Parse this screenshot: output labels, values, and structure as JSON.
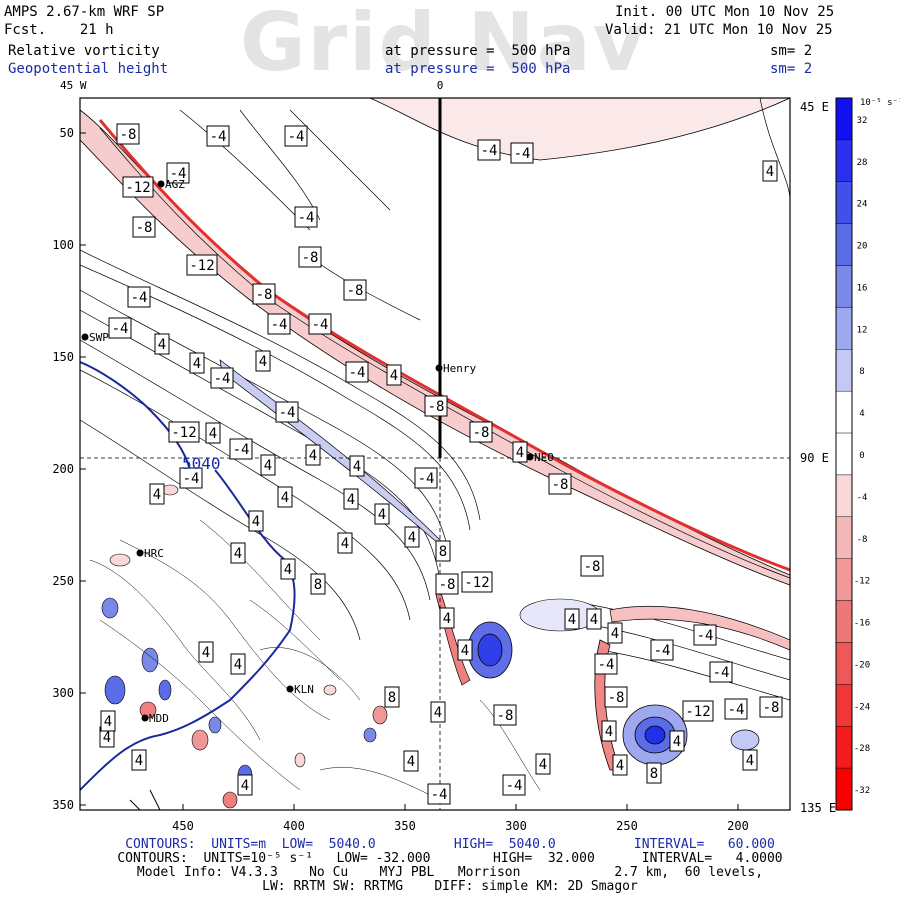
{
  "header": {
    "watermark": "Grid Nav",
    "model_title": "AMPS 2.67-km WRF SP",
    "fcst_label": "Fcst.    21 h",
    "init": "Init. 00 UTC Mon 10 Nov 25",
    "valid": "Valid: 21 UTC Mon 10 Nov 25",
    "field1_name": "Relative vorticity",
    "field1_level": "at pressure =  500 hPa",
    "field1_sm": "sm= 2",
    "field2_name": "Geopotential height",
    "field2_level": "at pressure =  500 hPa",
    "field2_sm": "sm= 2"
  },
  "map": {
    "lon_labels": {
      "top_left": "45 W",
      "top_center": "0",
      "right_top": "45 E",
      "right_mid": "90 E",
      "right_bottom": "135 E"
    },
    "y_ticks": [
      "50",
      "100",
      "150",
      "200",
      "250",
      "300",
      "350"
    ],
    "x_ticks": [
      "450",
      "400",
      "350",
      "300",
      "250",
      "200"
    ],
    "stations": [
      "AGZ",
      "SWP",
      "Henry",
      "NEO",
      "HRC",
      "KLN",
      "MDD"
    ],
    "height_contour_label": "5040",
    "vorticity_contour_labels": [
      "-8",
      "-4",
      "-4",
      "-4",
      "-4",
      "-4",
      "-12",
      "-8",
      "4",
      "-12",
      "-8",
      "-4",
      "-4",
      "-4",
      "-8",
      "-8",
      "-4",
      "-4",
      "4",
      "4",
      "4",
      "-4",
      "-4",
      "4",
      "-8",
      "-4",
      "-8",
      "-12",
      "4",
      "4",
      "-4",
      "4",
      "4",
      "4",
      "-4",
      "-4",
      "-8",
      "4",
      "4",
      "4",
      "4",
      "4",
      "4",
      "4",
      "4",
      "8",
      "4",
      "8",
      "-12",
      "-8",
      "-8",
      "4",
      "4",
      "4",
      "-4",
      "4",
      "4",
      "4",
      "4",
      "-4",
      "-4",
      "-4",
      "-8",
      "-8",
      "-12",
      "-4",
      "-8",
      "8",
      "4",
      "4",
      "4",
      "4",
      "4",
      "4",
      "4",
      "8",
      "4",
      "-4",
      "-4",
      "4",
      "4",
      "4"
    ]
  },
  "colorbar": {
    "unit": "10⁻⁵ s⁻¹",
    "labels": [
      "32",
      "28",
      "24",
      "20",
      "16",
      "12",
      "8",
      "4",
      "0",
      "-4",
      "-8",
      "-12",
      "-16",
      "-20",
      "-24",
      "-28",
      "-32"
    ],
    "colors": [
      "#1010f0",
      "#2a30ec",
      "#4050e8",
      "#5a6ce6",
      "#7a88e8",
      "#9ea8ee",
      "#c4c8f4",
      "#ffffff",
      "#ffffff",
      "#f8d8d8",
      "#f4b8b8",
      "#f09898",
      "#ec7878",
      "#ee5858",
      "#f03838",
      "#f21c1c",
      "#f80000"
    ]
  },
  "footer": {
    "line1": "CONTOURS:  UNITS=m  LOW=  5040.0          HIGH=  5040.0          INTERVAL=   60.000",
    "line2": "CONTOURS:  UNITS=10⁻⁵ s⁻¹   LOW= -32.000        HIGH=  32.000      INTERVAL=   4.0000",
    "line3": "Model Info: V4.3.3    No Cu    MYJ PBL   Morrison            2.7 km,  60 levels,",
    "line4": "LW: RRTM SW: RRTMG    DIFF: simple KM: 2D Smagor"
  }
}
